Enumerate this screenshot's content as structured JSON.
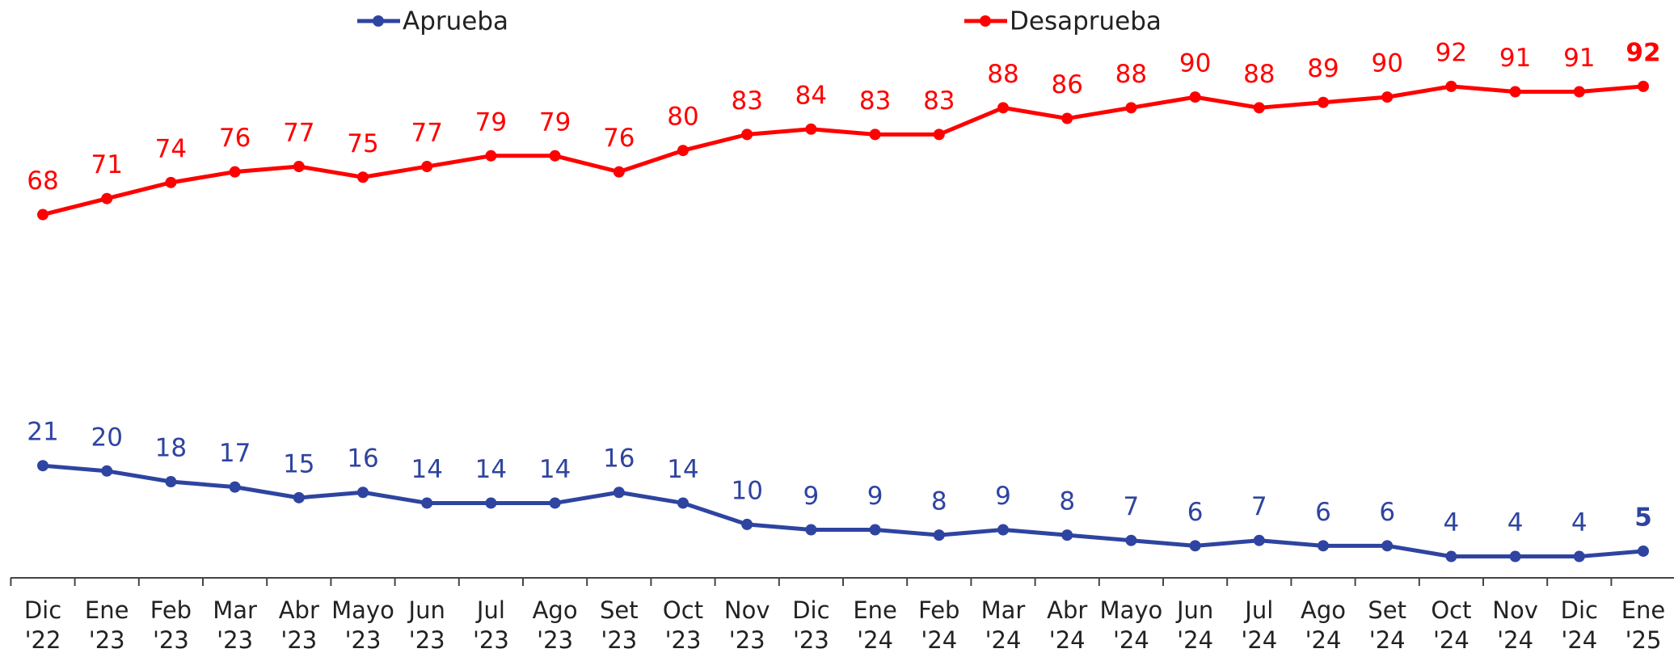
{
  "chart_data": {
    "type": "line",
    "categories": [
      "Dic '22",
      "Ene '23",
      "Feb '23",
      "Mar '23",
      "Abr '23",
      "Mayo '23",
      "Jun '23",
      "Jul '23",
      "Ago '23",
      "Set '23",
      "Oct '23",
      "Nov '23",
      "Dic '23",
      "Ene '24",
      "Feb '24",
      "Mar '24",
      "Abr '24",
      "Mayo '24",
      "Jun '24",
      "Jul '24",
      "Ago '24",
      "Set '24",
      "Oct '24",
      "Nov '24",
      "Dic '24",
      "Ene '25"
    ],
    "series": [
      {
        "name": "Aprueba",
        "color": "#2e44a0",
        "values": [
          21,
          20,
          18,
          17,
          15,
          16,
          14,
          14,
          14,
          16,
          14,
          10,
          9,
          9,
          8,
          9,
          8,
          7,
          6,
          7,
          6,
          6,
          4,
          4,
          4,
          5
        ]
      },
      {
        "name": "Desaprueba",
        "color": "#ff0000",
        "values": [
          68,
          71,
          74,
          76,
          77,
          75,
          77,
          79,
          79,
          76,
          80,
          83,
          84,
          83,
          83,
          88,
          86,
          88,
          90,
          88,
          89,
          90,
          92,
          91,
          91,
          92
        ]
      }
    ],
    "ylim": [
      0,
      100
    ],
    "bold_last_label": true,
    "grid": false
  }
}
